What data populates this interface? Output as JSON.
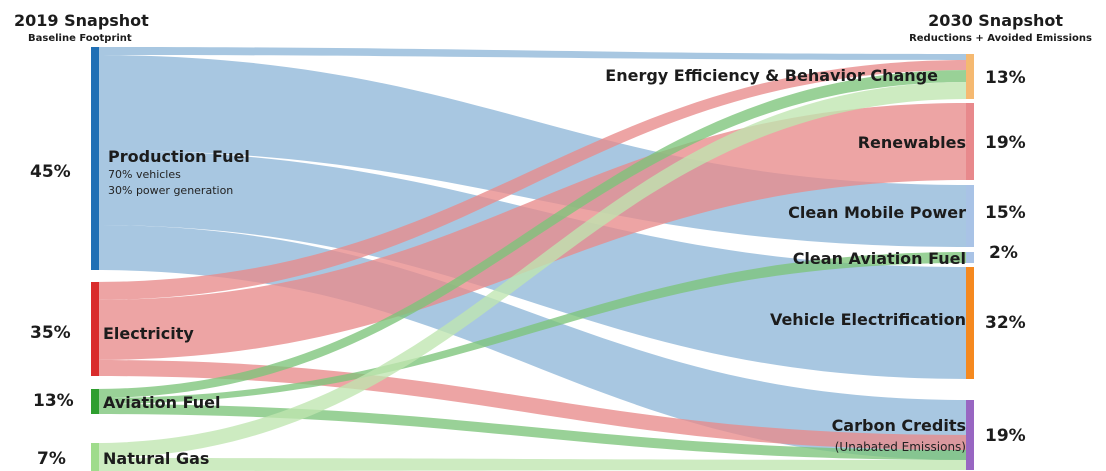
{
  "header_left": {
    "title": "2019 Snapshot",
    "subtitle": "Baseline Footprint"
  },
  "header_right": {
    "title": "2030 Snapshot",
    "subtitle": "Reductions + Avoided Emissions"
  },
  "sources": [
    {
      "id": "production_fuel",
      "label": "Production Fuel",
      "percent": "45%",
      "notes": [
        "70% vehicles",
        "30% power generation"
      ],
      "color": "#1f6fb5",
      "flow_color": "#8fb7d9"
    },
    {
      "id": "electricity",
      "label": "Electricity",
      "percent": "35%",
      "color": "#d92b2b",
      "flow_color": "#e88b8b"
    },
    {
      "id": "aviation_fuel",
      "label": "Aviation Fuel",
      "percent": "13%",
      "color": "#2e9e2e",
      "flow_color": "#7cc47a"
    },
    {
      "id": "natural_gas",
      "label": "Natural Gas",
      "percent": "7%",
      "color": "#9fdc8c",
      "flow_color": "#bfe6b0"
    }
  ],
  "targets": [
    {
      "id": "energy_efficiency",
      "label": "Energy Efficiency & Behavior Change",
      "percent": "13%",
      "color": "#f5b971"
    },
    {
      "id": "renewables",
      "label": "Renewables",
      "percent": "19%",
      "color": "#e8898c"
    },
    {
      "id": "clean_mobile_power",
      "label": "Clean Mobile Power",
      "percent": "15%",
      "color": "#a9c3e6"
    },
    {
      "id": "clean_aviation_fuel",
      "label": "Clean Aviation Fuel",
      "percent": "2%",
      "color": "#a9c3e6"
    },
    {
      "id": "vehicle_electrification",
      "label": "Vehicle Electrification",
      "percent": "32%",
      "color": "#f5891f"
    },
    {
      "id": "carbon_credits",
      "label": "Carbon Credits",
      "sublabel": "(Unabated Emissions)",
      "percent": "19%",
      "color": "#9866c2"
    }
  ],
  "flows": [
    {
      "source": "production_fuel",
      "target": "energy_efficiency"
    },
    {
      "source": "production_fuel",
      "target": "clean_mobile_power"
    },
    {
      "source": "production_fuel",
      "target": "vehicle_electrification"
    },
    {
      "source": "production_fuel",
      "target": "carbon_credits"
    },
    {
      "source": "electricity",
      "target": "energy_efficiency"
    },
    {
      "source": "electricity",
      "target": "renewables"
    },
    {
      "source": "electricity",
      "target": "carbon_credits"
    },
    {
      "source": "aviation_fuel",
      "target": "energy_efficiency"
    },
    {
      "source": "aviation_fuel",
      "target": "clean_aviation_fuel"
    },
    {
      "source": "aviation_fuel",
      "target": "carbon_credits"
    },
    {
      "source": "natural_gas",
      "target": "energy_efficiency"
    },
    {
      "source": "natural_gas",
      "target": "carbon_credits"
    }
  ]
}
